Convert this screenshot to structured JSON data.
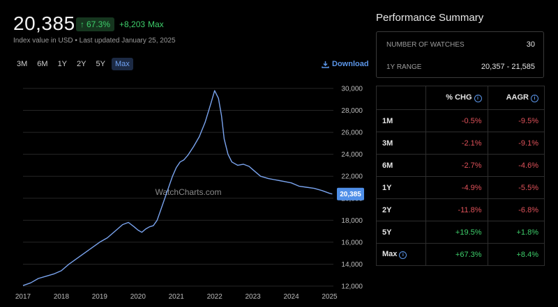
{
  "header": {
    "price": "20,385",
    "change_pct": "67.3%",
    "change_abs": "+8,203",
    "change_period": "Max",
    "subline": "Index value in USD • Last updated January 25, 2025"
  },
  "ranges": [
    "3M",
    "6M",
    "1Y",
    "2Y",
    "5Y",
    "Max"
  ],
  "active_range": "Max",
  "download_label": "Download",
  "colors": {
    "accent": "#5b95e8",
    "positive": "#3ecf6b",
    "negative": "#e0525a",
    "line": "#7aa4ef"
  },
  "summary": {
    "title": "Performance Summary",
    "rows": [
      {
        "label": "NUMBER OF WATCHES",
        "value": "30"
      },
      {
        "label": "1Y RANGE",
        "value": "20,357 - 21,585"
      }
    ]
  },
  "perf_table": {
    "headers": [
      "% CHG",
      "AAGR"
    ],
    "rows": [
      {
        "label": "1M",
        "chg": "-0.5%",
        "aagr": "-9.5%",
        "chg_sign": "neg",
        "aagr_sign": "neg"
      },
      {
        "label": "3M",
        "chg": "-2.1%",
        "aagr": "-9.1%",
        "chg_sign": "neg",
        "aagr_sign": "neg"
      },
      {
        "label": "6M",
        "chg": "-2.7%",
        "aagr": "-4.6%",
        "chg_sign": "neg",
        "aagr_sign": "neg"
      },
      {
        "label": "1Y",
        "chg": "-4.9%",
        "aagr": "-5.5%",
        "chg_sign": "neg",
        "aagr_sign": "neg"
      },
      {
        "label": "2Y",
        "chg": "-11.8%",
        "aagr": "-6.8%",
        "chg_sign": "neg",
        "aagr_sign": "neg"
      },
      {
        "label": "5Y",
        "chg": "+19.5%",
        "aagr": "+1.8%",
        "chg_sign": "pos",
        "aagr_sign": "pos"
      },
      {
        "label": "Max",
        "chg": "+67.3%",
        "aagr": "+8.4%",
        "chg_sign": "pos",
        "aagr_sign": "pos",
        "info": true
      }
    ]
  },
  "chart_data": {
    "type": "line",
    "watermark": "WatchCharts.com",
    "current_label": "20,385",
    "ylim": [
      12000,
      30000
    ],
    "yticks": [
      12000,
      14000,
      16000,
      18000,
      20000,
      22000,
      24000,
      26000,
      28000,
      30000
    ],
    "ytick_labels": [
      "12,000",
      "14,000",
      "16,000",
      "18,000",
      "20,000",
      "22,000",
      "24,000",
      "26,000",
      "28,000",
      "30,000"
    ],
    "xlim": [
      2017.0,
      2025.1
    ],
    "xticks": [
      2017,
      2018,
      2019,
      2020,
      2021,
      2022,
      2023,
      2024,
      2025
    ],
    "xtick_labels": [
      "2017",
      "2018",
      "2019",
      "2020",
      "2021",
      "2022",
      "2023",
      "2024",
      "2025"
    ],
    "grid": true,
    "x": [
      2017.0,
      2017.2,
      2017.4,
      2017.6,
      2017.8,
      2018.0,
      2018.2,
      2018.4,
      2018.6,
      2018.8,
      2019.0,
      2019.2,
      2019.4,
      2019.6,
      2019.75,
      2019.9,
      2020.0,
      2020.1,
      2020.2,
      2020.3,
      2020.4,
      2020.5,
      2020.6,
      2020.7,
      2020.8,
      2020.9,
      2021.0,
      2021.1,
      2021.2,
      2021.3,
      2021.45,
      2021.6,
      2021.75,
      2021.9,
      2022.0,
      2022.1,
      2022.18,
      2022.25,
      2022.35,
      2022.45,
      2022.6,
      2022.75,
      2022.9,
      2023.0,
      2023.2,
      2023.4,
      2023.55,
      2023.7,
      2023.85,
      2024.0,
      2024.2,
      2024.4,
      2024.6,
      2024.8,
      2025.0,
      2025.07
    ],
    "y": [
      12050,
      12300,
      12700,
      12900,
      13100,
      13400,
      14000,
      14500,
      15000,
      15500,
      16000,
      16400,
      17000,
      17600,
      17800,
      17400,
      17100,
      16900,
      17200,
      17400,
      17500,
      18000,
      19000,
      20000,
      21000,
      22000,
      22800,
      23300,
      23500,
      23900,
      24700,
      25600,
      26900,
      28600,
      29800,
      29100,
      27500,
      25400,
      24000,
      23300,
      23000,
      23100,
      22900,
      22600,
      22000,
      21800,
      21700,
      21600,
      21500,
      21400,
      21100,
      21000,
      20900,
      20700,
      20450,
      20385
    ]
  }
}
